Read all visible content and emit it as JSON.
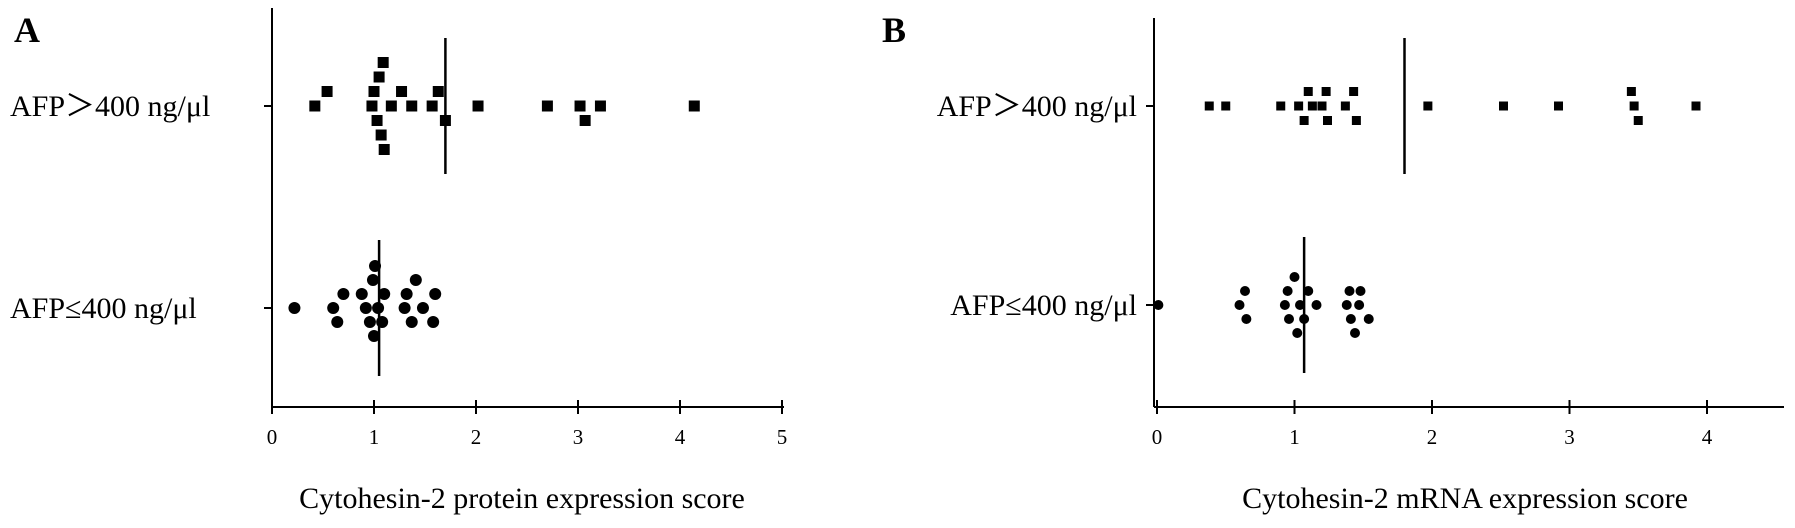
{
  "chart_data": [
    {
      "panel": "A",
      "type": "scatter",
      "title": "",
      "xlabel": "Cytohesin-2 protein expression score",
      "ylabel": "",
      "xlim": [
        0,
        5
      ],
      "xticks": [
        "0",
        "1",
        "2",
        "3",
        "4",
        "5"
      ],
      "groups": [
        {
          "name": "AFP＞400 ng/μl",
          "marker": "square",
          "mean": 1.7,
          "points": [
            {
              "x": 0.42,
              "offset": 0
            },
            {
              "x": 0.54,
              "offset": 1
            },
            {
              "x": 0.98,
              "offset": 0
            },
            {
              "x": 1.0,
              "offset": 1
            },
            {
              "x": 1.03,
              "offset": -1
            },
            {
              "x": 1.05,
              "offset": 2
            },
            {
              "x": 1.07,
              "offset": -2
            },
            {
              "x": 1.09,
              "offset": 3
            },
            {
              "x": 1.1,
              "offset": -3
            },
            {
              "x": 1.17,
              "offset": 0
            },
            {
              "x": 1.27,
              "offset": 1
            },
            {
              "x": 1.37,
              "offset": 0
            },
            {
              "x": 1.57,
              "offset": 0
            },
            {
              "x": 1.63,
              "offset": 1
            },
            {
              "x": 1.7,
              "offset": -1
            },
            {
              "x": 2.02,
              "offset": 0
            },
            {
              "x": 2.7,
              "offset": 0
            },
            {
              "x": 3.02,
              "offset": 0
            },
            {
              "x": 3.07,
              "offset": -1
            },
            {
              "x": 3.22,
              "offset": 0
            },
            {
              "x": 4.14,
              "offset": 0
            }
          ]
        },
        {
          "name": "AFP≤400 ng/μl",
          "marker": "circle",
          "mean": 1.05,
          "points": [
            {
              "x": 0.22,
              "offset": 0
            },
            {
              "x": 0.6,
              "offset": 0
            },
            {
              "x": 0.64,
              "offset": -1
            },
            {
              "x": 0.7,
              "offset": 1
            },
            {
              "x": 0.88,
              "offset": 1
            },
            {
              "x": 0.92,
              "offset": 0
            },
            {
              "x": 0.96,
              "offset": -1
            },
            {
              "x": 0.99,
              "offset": 2
            },
            {
              "x": 1.0,
              "offset": -2
            },
            {
              "x": 1.01,
              "offset": 3
            },
            {
              "x": 1.04,
              "offset": 0
            },
            {
              "x": 1.08,
              "offset": -1
            },
            {
              "x": 1.1,
              "offset": 1
            },
            {
              "x": 1.3,
              "offset": 0
            },
            {
              "x": 1.32,
              "offset": 1
            },
            {
              "x": 1.37,
              "offset": -1
            },
            {
              "x": 1.41,
              "offset": 2
            },
            {
              "x": 1.48,
              "offset": 0
            },
            {
              "x": 1.58,
              "offset": -1
            },
            {
              "x": 1.6,
              "offset": 1
            }
          ]
        }
      ]
    },
    {
      "panel": "B",
      "type": "scatter",
      "title": "",
      "xlabel": "Cytohesin-2 mRNA expression score",
      "ylabel": "",
      "xlim": [
        0,
        4.5
      ],
      "xticks": [
        "0",
        "1",
        "2",
        "3",
        "4"
      ],
      "groups": [
        {
          "name": "AFP＞400 ng/μl",
          "marker": "square",
          "mean": 1.8,
          "points": [
            {
              "x": 0.38,
              "offset": 0
            },
            {
              "x": 0.5,
              "offset": 0
            },
            {
              "x": 0.9,
              "offset": 0
            },
            {
              "x": 1.03,
              "offset": 0
            },
            {
              "x": 1.07,
              "offset": -1
            },
            {
              "x": 1.1,
              "offset": 1
            },
            {
              "x": 1.13,
              "offset": 0
            },
            {
              "x": 1.2,
              "offset": 0
            },
            {
              "x": 1.23,
              "offset": 1
            },
            {
              "x": 1.24,
              "offset": -1
            },
            {
              "x": 1.37,
              "offset": 0
            },
            {
              "x": 1.43,
              "offset": 1
            },
            {
              "x": 1.45,
              "offset": -1
            },
            {
              "x": 1.97,
              "offset": 0
            },
            {
              "x": 2.52,
              "offset": 0
            },
            {
              "x": 2.92,
              "offset": 0
            },
            {
              "x": 3.45,
              "offset": 1
            },
            {
              "x": 3.47,
              "offset": 0
            },
            {
              "x": 3.5,
              "offset": -1
            },
            {
              "x": 3.92,
              "offset": 0
            }
          ]
        },
        {
          "name": "AFP≤400 ng/μl",
          "marker": "circle",
          "mean": 1.07,
          "points": [
            {
              "x": 0.01,
              "offset": 0
            },
            {
              "x": 0.6,
              "offset": 0
            },
            {
              "x": 0.64,
              "offset": 1
            },
            {
              "x": 0.65,
              "offset": -1
            },
            {
              "x": 0.93,
              "offset": 0
            },
            {
              "x": 0.95,
              "offset": 1
            },
            {
              "x": 0.96,
              "offset": -1
            },
            {
              "x": 1.0,
              "offset": 2
            },
            {
              "x": 1.02,
              "offset": -2
            },
            {
              "x": 1.04,
              "offset": 0
            },
            {
              "x": 1.07,
              "offset": -1
            },
            {
              "x": 1.1,
              "offset": 1
            },
            {
              "x": 1.16,
              "offset": 0
            },
            {
              "x": 1.38,
              "offset": 0
            },
            {
              "x": 1.4,
              "offset": 1
            },
            {
              "x": 1.41,
              "offset": -1
            },
            {
              "x": 1.44,
              "offset": -2
            },
            {
              "x": 1.47,
              "offset": 0
            },
            {
              "x": 1.48,
              "offset": 1
            },
            {
              "x": 1.54,
              "offset": -1
            }
          ]
        }
      ]
    }
  ]
}
